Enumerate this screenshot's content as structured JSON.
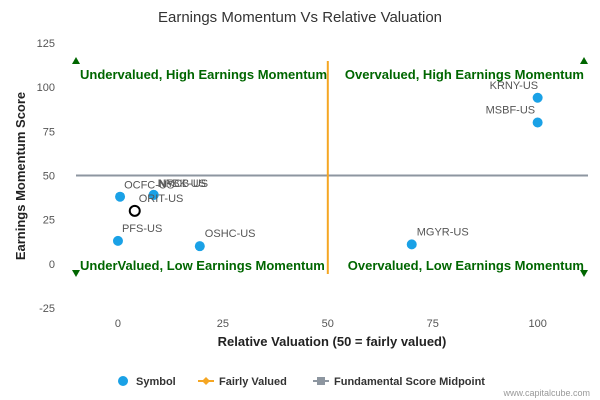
{
  "chart_data": {
    "type": "scatter",
    "title": "Earnings Momentum Vs Relative Valuation",
    "xlabel": "Relative Valuation (50 = fairly valued)",
    "ylabel": "Earnings Momentum Score",
    "xlim": [
      -10,
      112
    ],
    "ylim": [
      -25,
      125
    ],
    "x_ticks": [
      0,
      25,
      50,
      75,
      100
    ],
    "y_ticks": [
      -25,
      0,
      25,
      50,
      75,
      100,
      125
    ],
    "fair_value_x": 50,
    "midpoint_y": 50,
    "colors": {
      "symbol": "#1aa1e6",
      "fair": "#f5a623",
      "midpoint": "#8d96a0",
      "quadrant_text": "#006600",
      "triangle": "#006600"
    },
    "points": [
      {
        "label": "KRNY-US",
        "x": 100,
        "y": 94,
        "highlight": false
      },
      {
        "label": "MSBF-US",
        "x": 100,
        "y": 80,
        "highlight": false
      },
      {
        "label": "OCFC-US",
        "x": 0.5,
        "y": 38,
        "highlight": false
      },
      {
        "label": "NFBK-US",
        "x": 8.5,
        "y": 39,
        "highlight": false
      },
      {
        "label": "NYCB-US",
        "x": 8.5,
        "y": 39,
        "highlight": false
      },
      {
        "label": "ORIT-US",
        "x": 4,
        "y": 30,
        "highlight": true
      },
      {
        "label": "PFS-US",
        "x": 0,
        "y": 13,
        "highlight": false
      },
      {
        "label": "OSHC-US",
        "x": 19.5,
        "y": 10,
        "highlight": false
      },
      {
        "label": "MGYR-US",
        "x": 70,
        "y": 11,
        "highlight": false
      }
    ],
    "quadrants": {
      "top_left": "Undervalued, High Earnings Momentum",
      "top_right": "Overvalued, High Earnings Momentum",
      "bottom_left": "UnderValued, Low Earnings Momentum",
      "bottom_right": "Overvalued, Low Earnings Momentum"
    },
    "legend": {
      "placement": "bottom",
      "items": [
        {
          "name": "Symbol"
        },
        {
          "name": "Fairly Valued"
        },
        {
          "name": "Fundamental Score Midpoint"
        }
      ]
    },
    "credit": "www.capitalcube.com"
  }
}
